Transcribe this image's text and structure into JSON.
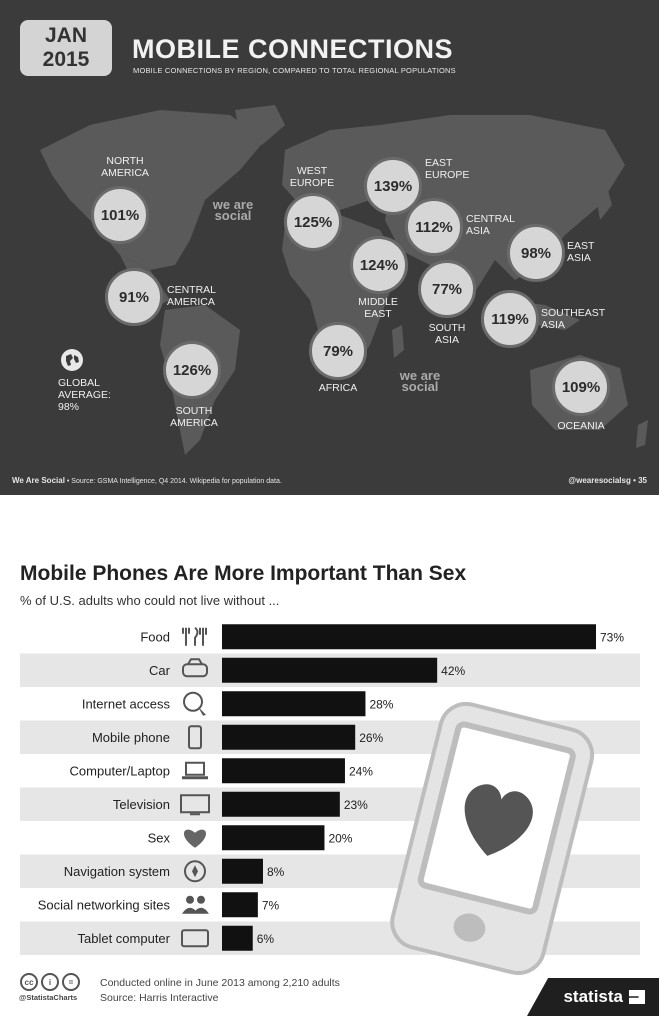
{
  "infographic_top": {
    "date_line1": "JAN",
    "date_line2": "2015",
    "title": "MOBILE CONNECTIONS",
    "subtitle": "MOBILE CONNECTIONS BY REGION, COMPARED TO TOTAL REGIONAL POPULATIONS",
    "watermark": "we are social",
    "global": {
      "label": "GLOBAL AVERAGE:",
      "value": "98%"
    },
    "regions": [
      {
        "name": "NORTH AMERICA",
        "value": "101%"
      },
      {
        "name": "CENTRAL AMERICA",
        "value": "91%"
      },
      {
        "name": "SOUTH AMERICA",
        "value": "126%"
      },
      {
        "name": "WEST EUROPE",
        "value": "125%"
      },
      {
        "name": "EAST EUROPE",
        "value": "139%"
      },
      {
        "name": "CENTRAL ASIA",
        "value": "112%"
      },
      {
        "name": "MIDDLE EAST",
        "value": "124%"
      },
      {
        "name": "AFRICA",
        "value": "79%"
      },
      {
        "name": "SOUTH ASIA",
        "value": "77%"
      },
      {
        "name": "EAST ASIA",
        "value": "98%"
      },
      {
        "name": "SOUTHEAST ASIA",
        "value": "119%"
      },
      {
        "name": "OCEANIA",
        "value": "109%"
      }
    ],
    "footer_brand": "We Are Social",
    "footer_source": "Source: GSMA Intelligence, Q4 2014. Wikipedia for population data.",
    "footer_handle": "@wearesocialsg",
    "footer_page": "35"
  },
  "chart_data": {
    "type": "bar",
    "orientation": "horizontal",
    "title": "Mobile Phones Are More Important Than Sex",
    "subtitle": "% of U.S. adults who could not live without ...",
    "categories": [
      "Food",
      "Car",
      "Internet access",
      "Mobile phone",
      "Computer/Laptop",
      "Television",
      "Sex",
      "Navigation system",
      "Social networking sites",
      "Tablet computer"
    ],
    "values": [
      73,
      42,
      28,
      26,
      24,
      23,
      20,
      8,
      7,
      6
    ],
    "value_labels": [
      "73%",
      "42%",
      "28%",
      "26%",
      "24%",
      "23%",
      "20%",
      "8%",
      "7%",
      "6%"
    ],
    "icons": [
      "cutlery-icon",
      "car-icon",
      "globe-cursor-icon",
      "mobile-phone-icon",
      "laptop-icon",
      "television-icon",
      "heart-icon",
      "compass-icon",
      "people-icon",
      "tablet-icon"
    ],
    "bar_color": "#111111",
    "stripe_color": "#e6e6e6",
    "xlim": [
      0,
      73
    ],
    "grid": false,
    "legend": "none"
  },
  "footer": {
    "note": "Conducted online in June 2013 among 2,210 adults",
    "source": "Source: Harris Interactive",
    "handle": "@StatistaCharts",
    "brand": "statista"
  }
}
